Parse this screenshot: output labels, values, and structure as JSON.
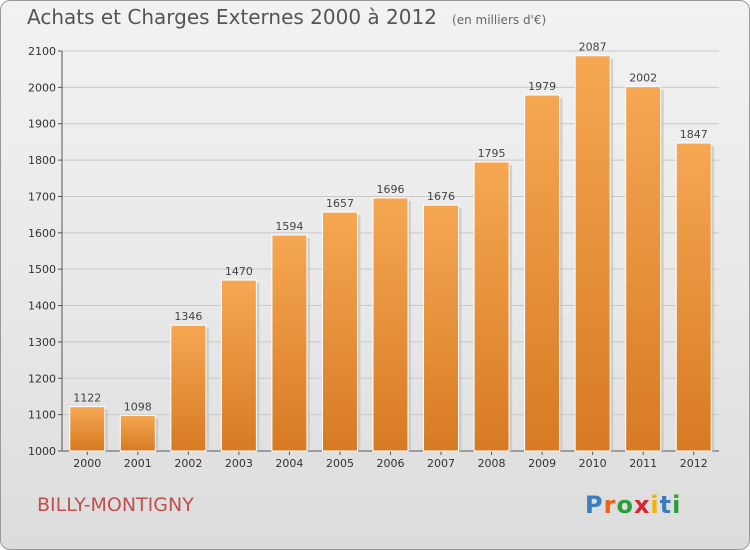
{
  "header": {
    "title": "Achats et Charges Externes 2000 à 2012",
    "subtitle": "(en milliers d'€)"
  },
  "footer": {
    "place": "BILLY-MONTIGNY",
    "logo_text": "Proxiti",
    "logo_colors": [
      "#3a7ebf",
      "#e8621a",
      "#2aa03b",
      "#d6262e",
      "#f0b400",
      "#3a7ebf",
      "#2aa03b"
    ]
  },
  "colors": {
    "bar_light": "#f6a752",
    "bar_dark": "#d77a23",
    "grid": "#c8c8c8"
  },
  "chart_data": {
    "type": "bar",
    "title": "Achats et Charges Externes 2000 à 2012",
    "subtitle": "(en milliers d'€)",
    "categories": [
      "2000",
      "2001",
      "2002",
      "2003",
      "2004",
      "2005",
      "2006",
      "2007",
      "2008",
      "2009",
      "2010",
      "2011",
      "2012"
    ],
    "values": [
      1122,
      1098,
      1346,
      1470,
      1594,
      1657,
      1696,
      1676,
      1795,
      1979,
      2087,
      2002,
      1847
    ],
    "ylim": [
      1000,
      2100
    ],
    "yticks": [
      1000,
      1100,
      1200,
      1300,
      1400,
      1500,
      1600,
      1700,
      1800,
      1900,
      2000,
      2100
    ],
    "grid": true,
    "data_labels": true
  }
}
